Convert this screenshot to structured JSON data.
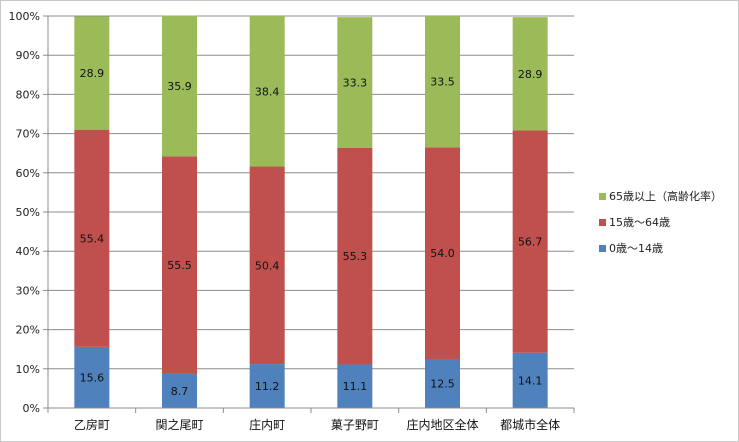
{
  "chart_data": {
    "type": "bar",
    "stacked": true,
    "percent_axis": true,
    "categories": [
      "乙房町",
      "関之尾町",
      "庄内町",
      "菓子野町",
      "庄内地区全体",
      "都城市全体"
    ],
    "series": [
      {
        "name": "0歳～14歳",
        "color": "#4f81bd",
        "values": [
          15.6,
          8.7,
          11.2,
          11.1,
          12.5,
          14.1
        ]
      },
      {
        "name": "15歳～64歳",
        "color": "#c0504d",
        "values": [
          55.4,
          55.5,
          50.4,
          55.3,
          54.0,
          56.7
        ]
      },
      {
        "name": "65歳以上（高齢化率）",
        "color": "#9bbb59",
        "values": [
          28.9,
          35.9,
          38.4,
          33.3,
          33.5,
          28.9
        ]
      }
    ],
    "data_labels": [
      [
        "15.6",
        "8.7",
        "11.2",
        "11.1",
        "12.5",
        "14.1"
      ],
      [
        "55.4",
        "55.5",
        "50.4",
        "55.3",
        "54.0",
        "56.7"
      ],
      [
        "28.9",
        "35.9",
        "38.4",
        "33.3",
        "33.5",
        "28.9"
      ]
    ],
    "ylim": [
      0,
      100
    ],
    "yticks": [
      "0%",
      "10%",
      "20%",
      "30%",
      "40%",
      "50%",
      "60%",
      "70%",
      "80%",
      "90%",
      "100%"
    ],
    "grid": true,
    "legend": [
      "65歳以上（高齢化率）",
      "15歳～64歳",
      "0歳～14歳"
    ],
    "legend_position": "right"
  }
}
